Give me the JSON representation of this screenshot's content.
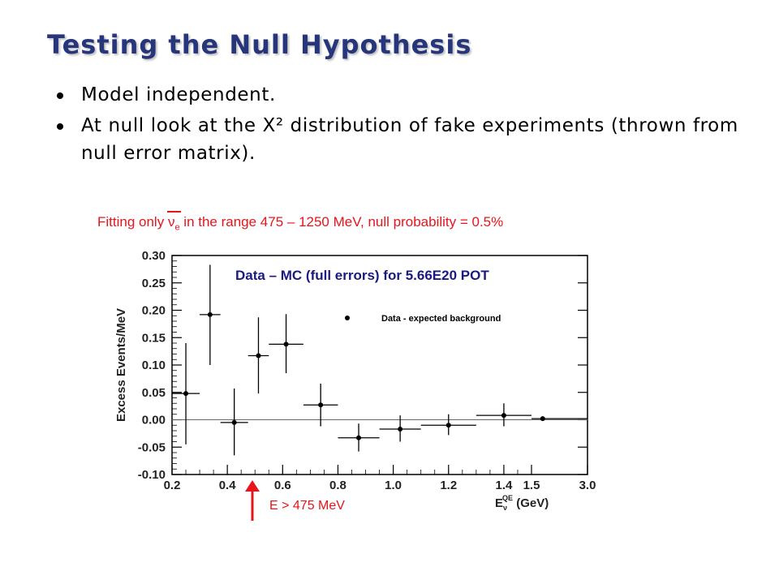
{
  "slide": {
    "title": "Testing the Null Hypothesis",
    "bullets": [
      "Model independent.",
      "At null look at the X² distribution of fake experiments (thrown from null error matrix)."
    ],
    "caption_before": "Fitting only ",
    "caption_nu": "ν",
    "caption_sub": "e",
    "caption_after": " in the range 475 – 1250 MeV, null probability = 0.5%",
    "arrow_label": "E > 475 MeV"
  },
  "colors": {
    "title": "#27357b",
    "red": "#e8141c",
    "chart_title": "#1a1a80"
  },
  "chart_data": {
    "type": "scatter",
    "title": "Data – MC (full errors) for 5.66E20 POT",
    "xlabel_main": "E",
    "xlabel_sub": "ν",
    "xlabel_sup": "QE",
    "xlabel_unit": " (GeV)",
    "ylabel": "Excess Events/MeV",
    "xlim": [
      0.2,
      3.0
    ],
    "ylim": [
      -0.1,
      0.3
    ],
    "xticks": [
      0.2,
      0.4,
      0.6,
      0.8,
      1.0,
      1.2,
      1.4,
      1.5,
      3.0
    ],
    "xtick_labels": [
      "0.2",
      "0.4",
      "0.6",
      "0.8",
      "1.0",
      "1.2",
      "1.4",
      "1.5",
      "3.0"
    ],
    "yticks": [
      -0.1,
      -0.05,
      0.0,
      0.05,
      0.1,
      0.15,
      0.2,
      0.25,
      0.3
    ],
    "ytick_labels": [
      "-0.10",
      "-0.05",
      "0.00",
      "0.05",
      "0.10",
      "0.15",
      "0.20",
      "0.25",
      "0.30"
    ],
    "legend": "Data - expected background",
    "legend_position": "top-right",
    "zero_line": true,
    "points": [
      {
        "xlo": 0.2,
        "xhi": 0.3,
        "x": 0.25,
        "y": 0.048,
        "ylo": -0.045,
        "yhi": 0.14
      },
      {
        "xlo": 0.3,
        "xhi": 0.375,
        "x": 0.3375,
        "y": 0.192,
        "ylo": 0.1,
        "yhi": 0.283
      },
      {
        "xlo": 0.375,
        "xhi": 0.475,
        "x": 0.425,
        "y": -0.005,
        "ylo": -0.065,
        "yhi": 0.057
      },
      {
        "xlo": 0.475,
        "xhi": 0.55,
        "x": 0.5125,
        "y": 0.117,
        "ylo": 0.048,
        "yhi": 0.187
      },
      {
        "xlo": 0.55,
        "xhi": 0.675,
        "x": 0.6125,
        "y": 0.138,
        "ylo": 0.085,
        "yhi": 0.193
      },
      {
        "xlo": 0.675,
        "xhi": 0.8,
        "x": 0.7375,
        "y": 0.027,
        "ylo": -0.012,
        "yhi": 0.066
      },
      {
        "xlo": 0.8,
        "xhi": 0.95,
        "x": 0.875,
        "y": -0.033,
        "ylo": -0.058,
        "yhi": -0.007
      },
      {
        "xlo": 0.95,
        "xhi": 1.1,
        "x": 1.025,
        "y": -0.017,
        "ylo": -0.04,
        "yhi": 0.008
      },
      {
        "xlo": 1.1,
        "xhi": 1.3,
        "x": 1.2,
        "y": -0.01,
        "ylo": -0.028,
        "yhi": 0.01
      },
      {
        "xlo": 1.3,
        "xhi": 1.5,
        "x": 1.4,
        "y": 0.008,
        "ylo": -0.012,
        "yhi": 0.03
      },
      {
        "xlo": 1.5,
        "xhi": 3.0,
        "x": 1.8,
        "y": 0.002,
        "ylo": -0.002,
        "yhi": 0.005
      }
    ]
  }
}
